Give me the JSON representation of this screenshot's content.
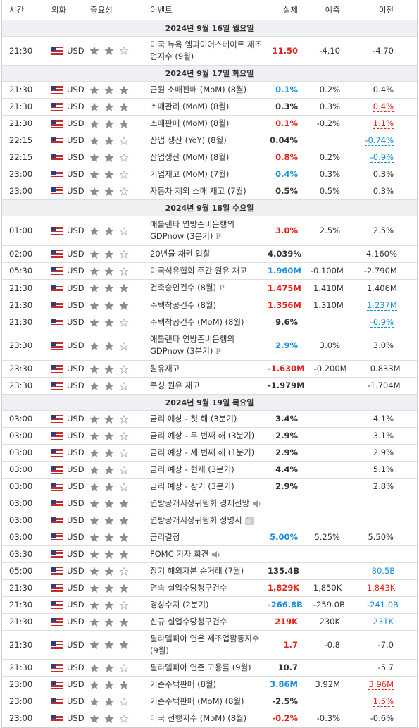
{
  "header": {
    "time": "시간",
    "currency": "외화",
    "importance": "중요성",
    "event": "이벤트",
    "actual": "실제",
    "forecast": "예측",
    "previous": "이전"
  },
  "days": [
    {
      "date": "2024년 9월 16일 월요일",
      "events": [
        {
          "time": "21:30",
          "currency": "USD",
          "importance": 2,
          "event": "미국 뉴욕 엠파이어스테이트 제조업지수 (9월)",
          "actual": "11.50",
          "actual_color": "#e0241b",
          "forecast": "-4.10",
          "previous": "-4.70"
        }
      ]
    },
    {
      "date": "2024년 9월 17일 화요일",
      "events": [
        {
          "time": "21:30",
          "currency": "USD",
          "importance": 3,
          "event": "근원 소매판매 (MoM) (8월)",
          "actual": "0.1%",
          "actual_color": "#1a8fd6",
          "forecast": "0.2%",
          "previous": "0.4%"
        },
        {
          "time": "21:30",
          "currency": "USD",
          "importance": 3,
          "event": "소매관리 (MoM) (8월)",
          "actual": "0.3%",
          "forecast": "0.3%",
          "previous": "0.4%",
          "previous_color": "#e0241b"
        },
        {
          "time": "21:30",
          "currency": "USD",
          "importance": 3,
          "event": "소매판매 (MoM) (8월)",
          "actual": "0.1%",
          "actual_color": "#e0241b",
          "forecast": "-0.2%",
          "previous": "1.1%",
          "previous_color": "#e0241b"
        },
        {
          "time": "22:15",
          "currency": "USD",
          "importance": 2,
          "event": "산업 생산 (YoY) (8월)",
          "actual": "0.04%",
          "previous": "-0.74%",
          "previous_color": "#1a8fd6"
        },
        {
          "time": "22:15",
          "currency": "USD",
          "importance": 2,
          "event": "산업생산 (MoM) (8월)",
          "actual": "0.8%",
          "actual_color": "#e0241b",
          "forecast": "0.2%",
          "previous": "-0.9%",
          "previous_color": "#1a8fd6"
        },
        {
          "time": "23:00",
          "currency": "USD",
          "importance": 2,
          "event": "기업재고 (MoM) (7월)",
          "actual": "0.4%",
          "actual_color": "#1a8fd6",
          "forecast": "0.3%",
          "previous": "0.3%"
        },
        {
          "time": "23:00",
          "currency": "USD",
          "importance": 2,
          "event": "자동차 제외 소매 재고 (7월)",
          "actual": "0.5%",
          "forecast": "0.5%",
          "previous": "0.3%"
        }
      ]
    },
    {
      "date": "2024년 9월 18일 수요일",
      "events": [
        {
          "time": "01:00",
          "currency": "USD",
          "importance": 2,
          "event": "애틀랜타 연방준비은행의 GDPnow (3분기)",
          "icon": "P",
          "actual": "3.0%",
          "actual_color": "#e0241b",
          "forecast": "2.5%",
          "previous": "2.5%"
        },
        {
          "time": "02:00",
          "currency": "USD",
          "importance": 2,
          "event": "20년물 채권 입찰",
          "actual": "4.039%",
          "previous": "4.160%"
        },
        {
          "time": "05:30",
          "currency": "USD",
          "importance": 2,
          "event": "미국석유협회 주간 원유 재고",
          "actual": "1.960M",
          "actual_color": "#1a8fd6",
          "forecast": "-0.100M",
          "previous": "-2.790M"
        },
        {
          "time": "21:30",
          "currency": "USD",
          "importance": 3,
          "event": "건축승인건수 (8월)",
          "icon": "P",
          "actual": "1.475M",
          "actual_color": "#e0241b",
          "forecast": "1.410M",
          "previous": "1.406M"
        },
        {
          "time": "21:30",
          "currency": "USD",
          "importance": 3,
          "event": "주택착공건수 (8월)",
          "actual": "1.356M",
          "actual_color": "#e0241b",
          "forecast": "1.310M",
          "previous": "1.237M",
          "previous_color": "#1a8fd6"
        },
        {
          "time": "21:30",
          "currency": "USD",
          "importance": 2,
          "event": "주택착공건수 (MoM) (8월)",
          "actual": "9.6%",
          "previous": "-6.9%",
          "previous_color": "#1a8fd6"
        },
        {
          "time": "23:30",
          "currency": "USD",
          "importance": 2,
          "event": "애틀랜타 연방준비은행의 GDPnow (3분기)",
          "icon": "P",
          "actual": "2.9%",
          "actual_color": "#1a8fd6",
          "forecast": "3.0%",
          "previous": "3.0%"
        },
        {
          "time": "23:30",
          "currency": "USD",
          "importance": 2,
          "event": "원유재고",
          "actual": "-1.630M",
          "actual_color": "#e0241b",
          "forecast": "-0.200M",
          "previous": "0.833M"
        },
        {
          "time": "23:30",
          "currency": "USD",
          "importance": 2,
          "event": "쿠싱 원유 재고",
          "actual": "-1.979M",
          "previous": "-1.704M"
        }
      ]
    },
    {
      "date": "2024년 9월 19일 목요일",
      "events": [
        {
          "time": "03:00",
          "currency": "USD",
          "importance": 2,
          "event": "금리 예상 - 첫 해 (3분기)",
          "actual": "3.4%",
          "previous": "4.1%"
        },
        {
          "time": "03:00",
          "currency": "USD",
          "importance": 2,
          "event": "금리 예상 - 두 번째 해 (3분기)",
          "actual": "2.9%",
          "previous": "3.1%"
        },
        {
          "time": "03:00",
          "currency": "USD",
          "importance": 2,
          "event": "금리 예상 - 세 번째 해 (1분기)",
          "actual": "2.9%",
          "previous": "2.9%"
        },
        {
          "time": "03:00",
          "currency": "USD",
          "importance": 2,
          "event": "금리 예상 - 현재 (3분기)",
          "actual": "4.4%",
          "previous": "5.1%"
        },
        {
          "time": "03:00",
          "currency": "USD",
          "importance": 2,
          "event": "금리 예상 - 장기 (3분기)",
          "actual": "2.9%",
          "previous": "2.8%"
        },
        {
          "time": "03:00",
          "currency": "USD",
          "importance": 3,
          "event": "연방공개시장위원회 경제전망",
          "icon": "speaker"
        },
        {
          "time": "03:00",
          "currency": "USD",
          "importance": 3,
          "event": "연방공개시장위원회 성명서",
          "icon": "doc"
        },
        {
          "time": "03:00",
          "currency": "USD",
          "importance": 3,
          "event": "금리결정",
          "actual": "5.00%",
          "actual_color": "#1a8fd6",
          "forecast": "5.25%",
          "previous": "5.50%"
        },
        {
          "time": "03:30",
          "currency": "USD",
          "importance": 3,
          "event": "FOMC 기자 회견",
          "icon": "speaker"
        },
        {
          "time": "05:00",
          "currency": "USD",
          "importance": 2,
          "event": "장기 해외자본 순거래 (7월)",
          "actual": "135.4B",
          "previous": "80.5B",
          "previous_color": "#1a8fd6"
        },
        {
          "time": "21:30",
          "currency": "USD",
          "importance": 3,
          "event": "연속 실업수당청구건수",
          "actual": "1,829K",
          "actual_color": "#e0241b",
          "forecast": "1,850K",
          "previous": "1,843K",
          "previous_color": "#e0241b"
        },
        {
          "time": "21:30",
          "currency": "USD",
          "importance": 2,
          "event": "경상수지 (2분기)",
          "actual": "-266.8B",
          "actual_color": "#1a8fd6",
          "forecast": "-259.0B",
          "previous": "-241.0B",
          "previous_color": "#1a8fd6"
        },
        {
          "time": "21:30",
          "currency": "USD",
          "importance": 3,
          "event": "신규 실업수당청구건수",
          "actual": "219K",
          "actual_color": "#e0241b",
          "forecast": "230K",
          "previous": "231K",
          "previous_color": "#1a8fd6"
        },
        {
          "time": "21:30",
          "currency": "USD",
          "importance": 3,
          "event": "필라델피아 연은 제조업활동지수 (9월)",
          "actual": "1.7",
          "actual_color": "#e0241b",
          "forecast": "-0.8",
          "previous": "-7.0"
        },
        {
          "time": "21:30",
          "currency": "USD",
          "importance": 2,
          "event": "필라델피아 연준 고용률 (9월)",
          "actual": "10.7",
          "previous": "-5.7"
        },
        {
          "time": "23:00",
          "currency": "USD",
          "importance": 3,
          "event": "기존주택판매 (8월)",
          "actual": "3.86M",
          "actual_color": "#1a8fd6",
          "forecast": "3.92M",
          "previous": "3.96M",
          "previous_color": "#e0241b"
        },
        {
          "time": "23:00",
          "currency": "USD",
          "importance": 2,
          "event": "기존주택판매 (MoM) (8월)",
          "actual": "-2.5%",
          "previous": "1.5%",
          "previous_color": "#e0241b"
        },
        {
          "time": "23:00",
          "currency": "USD",
          "importance": 2,
          "event": "미국 선행지수 (MoM) (8월)",
          "actual": "-0.2%",
          "actual_color": "#e0241b",
          "forecast": "-0.3%",
          "previous": "-0.6%"
        }
      ]
    }
  ]
}
